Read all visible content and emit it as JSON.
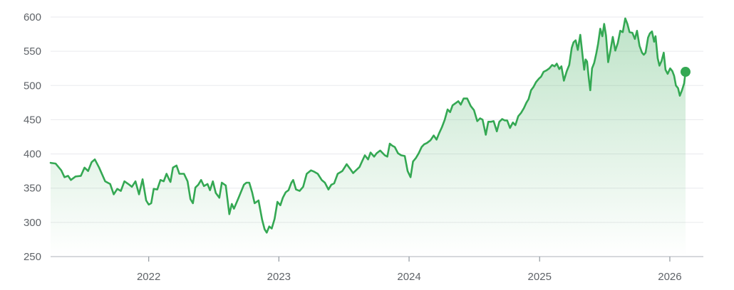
{
  "chart_data": {
    "type": "area",
    "title": "",
    "xlabel": "",
    "ylabel": "",
    "ylim": [
      250,
      600
    ],
    "xlim": [
      "2021-04-01",
      "2026-04-05"
    ],
    "y_ticks": [
      250,
      300,
      350,
      400,
      450,
      500,
      550,
      600
    ],
    "x_ticks": [
      {
        "label": "2022",
        "date": "2022-01-01"
      },
      {
        "label": "2023",
        "date": "2023-01-01"
      },
      {
        "label": "2024",
        "date": "2024-01-01"
      },
      {
        "label": "2025",
        "date": "2025-01-01"
      },
      {
        "label": "2026",
        "date": "2026-01-01"
      }
    ],
    "grid": true,
    "line_color": "#34a853",
    "fill_color": "#34a853",
    "last_point_marker": true,
    "series": [
      {
        "points": [
          [
            "2021-04-01",
            387
          ],
          [
            "2021-04-15",
            386
          ],
          [
            "2021-05-01",
            376
          ],
          [
            "2021-05-10",
            366
          ],
          [
            "2021-05-20",
            368
          ],
          [
            "2021-05-28",
            362
          ],
          [
            "2021-06-10",
            367
          ],
          [
            "2021-06-25",
            368
          ],
          [
            "2021-07-05",
            380
          ],
          [
            "2021-07-15",
            375
          ],
          [
            "2021-07-25",
            388
          ],
          [
            "2021-08-03",
            392
          ],
          [
            "2021-08-15",
            380
          ],
          [
            "2021-09-01",
            360
          ],
          [
            "2021-09-15",
            356
          ],
          [
            "2021-09-25",
            341
          ],
          [
            "2021-10-05",
            349
          ],
          [
            "2021-10-15",
            346
          ],
          [
            "2021-10-25",
            360
          ],
          [
            "2021-11-05",
            356
          ],
          [
            "2021-11-15",
            352
          ],
          [
            "2021-11-25",
            360
          ],
          [
            "2021-12-05",
            341
          ],
          [
            "2021-12-15",
            363
          ],
          [
            "2021-12-25",
            332
          ],
          [
            "2022-01-01",
            326
          ],
          [
            "2022-01-08",
            328
          ],
          [
            "2022-01-15",
            349
          ],
          [
            "2022-01-25",
            348
          ],
          [
            "2022-02-03",
            362
          ],
          [
            "2022-02-12",
            360
          ],
          [
            "2022-02-20",
            371
          ],
          [
            "2022-02-28",
            362
          ],
          [
            "2022-03-03",
            359
          ],
          [
            "2022-03-10",
            380
          ],
          [
            "2022-03-20",
            383
          ],
          [
            "2022-03-28",
            371
          ],
          [
            "2022-04-10",
            371
          ],
          [
            "2022-04-20",
            360
          ],
          [
            "2022-04-28",
            334
          ],
          [
            "2022-05-05",
            328
          ],
          [
            "2022-05-12",
            351
          ],
          [
            "2022-05-20",
            355
          ],
          [
            "2022-05-28",
            362
          ],
          [
            "2022-06-05",
            353
          ],
          [
            "2022-06-15",
            356
          ],
          [
            "2022-06-22",
            347
          ],
          [
            "2022-06-30",
            360
          ],
          [
            "2022-07-08",
            343
          ],
          [
            "2022-07-18",
            336
          ],
          [
            "2022-07-25",
            358
          ],
          [
            "2022-08-05",
            354
          ],
          [
            "2022-08-15",
            312
          ],
          [
            "2022-08-22",
            327
          ],
          [
            "2022-08-28",
            320
          ],
          [
            "2022-09-10",
            336
          ],
          [
            "2022-09-25",
            355
          ],
          [
            "2022-10-02",
            358
          ],
          [
            "2022-10-10",
            358
          ],
          [
            "2022-10-18",
            344
          ],
          [
            "2022-10-25",
            328
          ],
          [
            "2022-11-05",
            332
          ],
          [
            "2022-11-15",
            304
          ],
          [
            "2022-11-22",
            290
          ],
          [
            "2022-11-28",
            285
          ],
          [
            "2022-12-05",
            294
          ],
          [
            "2022-12-12",
            291
          ],
          [
            "2022-12-20",
            305
          ],
          [
            "2022-12-28",
            330
          ],
          [
            "2023-01-05",
            325
          ],
          [
            "2023-01-12",
            336
          ],
          [
            "2023-01-20",
            344
          ],
          [
            "2023-01-28",
            347
          ],
          [
            "2023-02-05",
            358
          ],
          [
            "2023-02-10",
            362
          ],
          [
            "2023-02-18",
            348
          ],
          [
            "2023-02-28",
            346
          ],
          [
            "2023-03-10",
            352
          ],
          [
            "2023-03-20",
            371
          ],
          [
            "2023-04-01",
            376
          ],
          [
            "2023-04-10",
            374
          ],
          [
            "2023-04-20",
            371
          ],
          [
            "2023-05-01",
            362
          ],
          [
            "2023-05-10",
            358
          ],
          [
            "2023-05-20",
            348
          ],
          [
            "2023-05-28",
            355
          ],
          [
            "2023-06-05",
            357
          ],
          [
            "2023-06-15",
            371
          ],
          [
            "2023-06-28",
            375
          ],
          [
            "2023-07-10",
            385
          ],
          [
            "2023-07-20",
            378
          ],
          [
            "2023-07-28",
            372
          ],
          [
            "2023-08-05",
            376
          ],
          [
            "2023-08-15",
            381
          ],
          [
            "2023-08-22",
            389
          ],
          [
            "2023-08-30",
            398
          ],
          [
            "2023-09-08",
            392
          ],
          [
            "2023-09-15",
            402
          ],
          [
            "2023-09-25",
            396
          ],
          [
            "2023-10-02",
            401
          ],
          [
            "2023-10-12",
            405
          ],
          [
            "2023-10-25",
            398
          ],
          [
            "2023-11-01",
            396
          ],
          [
            "2023-11-08",
            415
          ],
          [
            "2023-11-15",
            412
          ],
          [
            "2023-11-22",
            410
          ],
          [
            "2023-12-01",
            401
          ],
          [
            "2023-12-10",
            398
          ],
          [
            "2023-12-20",
            397
          ],
          [
            "2023-12-28",
            375
          ],
          [
            "2024-01-05",
            366
          ],
          [
            "2024-01-12",
            389
          ],
          [
            "2024-01-20",
            394
          ],
          [
            "2024-01-28",
            401
          ],
          [
            "2024-02-05",
            410
          ],
          [
            "2024-02-12",
            414
          ],
          [
            "2024-02-20",
            416
          ],
          [
            "2024-03-01",
            420
          ],
          [
            "2024-03-10",
            427
          ],
          [
            "2024-03-18",
            421
          ],
          [
            "2024-03-25",
            430
          ],
          [
            "2024-04-02",
            439
          ],
          [
            "2024-04-10",
            450
          ],
          [
            "2024-04-18",
            465
          ],
          [
            "2024-04-25",
            461
          ],
          [
            "2024-05-02",
            471
          ],
          [
            "2024-05-10",
            474
          ],
          [
            "2024-05-18",
            477
          ],
          [
            "2024-05-25",
            472
          ],
          [
            "2024-06-02",
            481
          ],
          [
            "2024-06-12",
            481
          ],
          [
            "2024-06-22",
            470
          ],
          [
            "2024-07-01",
            464
          ],
          [
            "2024-07-10",
            448
          ],
          [
            "2024-07-18",
            452
          ],
          [
            "2024-07-25",
            450
          ],
          [
            "2024-08-03",
            428
          ],
          [
            "2024-08-10",
            447
          ],
          [
            "2024-08-18",
            447
          ],
          [
            "2024-08-25",
            448
          ],
          [
            "2024-09-03",
            433
          ],
          [
            "2024-09-10",
            447
          ],
          [
            "2024-09-18",
            451
          ],
          [
            "2024-09-25",
            449
          ],
          [
            "2024-10-02",
            449
          ],
          [
            "2024-10-10",
            438
          ],
          [
            "2024-10-18",
            446
          ],
          [
            "2024-10-25",
            442
          ],
          [
            "2024-11-02",
            455
          ],
          [
            "2024-11-10",
            460
          ],
          [
            "2024-11-18",
            467
          ],
          [
            "2024-11-25",
            475
          ],
          [
            "2024-12-01",
            480
          ],
          [
            "2024-12-08",
            493
          ],
          [
            "2024-12-15",
            498
          ],
          [
            "2024-12-22",
            505
          ],
          [
            "2024-12-30",
            510
          ],
          [
            "2025-01-05",
            513
          ],
          [
            "2025-01-12",
            520
          ],
          [
            "2025-01-20",
            522
          ],
          [
            "2025-01-28",
            525
          ],
          [
            "2025-02-05",
            530
          ],
          [
            "2025-02-12",
            528
          ],
          [
            "2025-02-18",
            532
          ],
          [
            "2025-02-25",
            524
          ],
          [
            "2025-03-03",
            528
          ],
          [
            "2025-03-10",
            507
          ],
          [
            "2025-03-18",
            521
          ],
          [
            "2025-03-25",
            530
          ],
          [
            "2025-04-01",
            555
          ],
          [
            "2025-04-06",
            563
          ],
          [
            "2025-04-12",
            566
          ],
          [
            "2025-04-18",
            552
          ],
          [
            "2025-04-25",
            574
          ],
          [
            "2025-05-02",
            541
          ],
          [
            "2025-05-06",
            523
          ],
          [
            "2025-05-10",
            538
          ],
          [
            "2025-05-14",
            535
          ],
          [
            "2025-05-19",
            510
          ],
          [
            "2025-05-23",
            493
          ],
          [
            "2025-05-28",
            525
          ],
          [
            "2025-06-03",
            533
          ],
          [
            "2025-06-09",
            547
          ],
          [
            "2025-06-14",
            561
          ],
          [
            "2025-06-20",
            583
          ],
          [
            "2025-06-26",
            572
          ],
          [
            "2025-07-01",
            590
          ],
          [
            "2025-07-06",
            573
          ],
          [
            "2025-07-12",
            534
          ],
          [
            "2025-07-18",
            550
          ],
          [
            "2025-07-25",
            571
          ],
          [
            "2025-08-01",
            551
          ],
          [
            "2025-08-08",
            562
          ],
          [
            "2025-08-15",
            580
          ],
          [
            "2025-08-22",
            578
          ],
          [
            "2025-08-29",
            598
          ],
          [
            "2025-09-04",
            590
          ],
          [
            "2025-09-10",
            578
          ],
          [
            "2025-09-18",
            577
          ],
          [
            "2025-09-25",
            568
          ],
          [
            "2025-10-01",
            580
          ],
          [
            "2025-10-08",
            558
          ],
          [
            "2025-10-15",
            548
          ],
          [
            "2025-10-20",
            545
          ],
          [
            "2025-10-25",
            548
          ],
          [
            "2025-11-01",
            570
          ],
          [
            "2025-11-06",
            576
          ],
          [
            "2025-11-12",
            579
          ],
          [
            "2025-11-18",
            564
          ],
          [
            "2025-11-22",
            572
          ],
          [
            "2025-11-28",
            540
          ],
          [
            "2025-12-03",
            529
          ],
          [
            "2025-12-09",
            536
          ],
          [
            "2025-12-15",
            548
          ],
          [
            "2025-12-20",
            523
          ],
          [
            "2025-12-26",
            517
          ],
          [
            "2026-01-02",
            525
          ],
          [
            "2026-01-08",
            521
          ],
          [
            "2026-01-13",
            514
          ],
          [
            "2026-01-18",
            500
          ],
          [
            "2026-01-24",
            496
          ],
          [
            "2026-01-29",
            485
          ],
          [
            "2026-02-04",
            493
          ],
          [
            "2026-02-10",
            503
          ],
          [
            "2026-02-14",
            520
          ]
        ]
      }
    ]
  }
}
